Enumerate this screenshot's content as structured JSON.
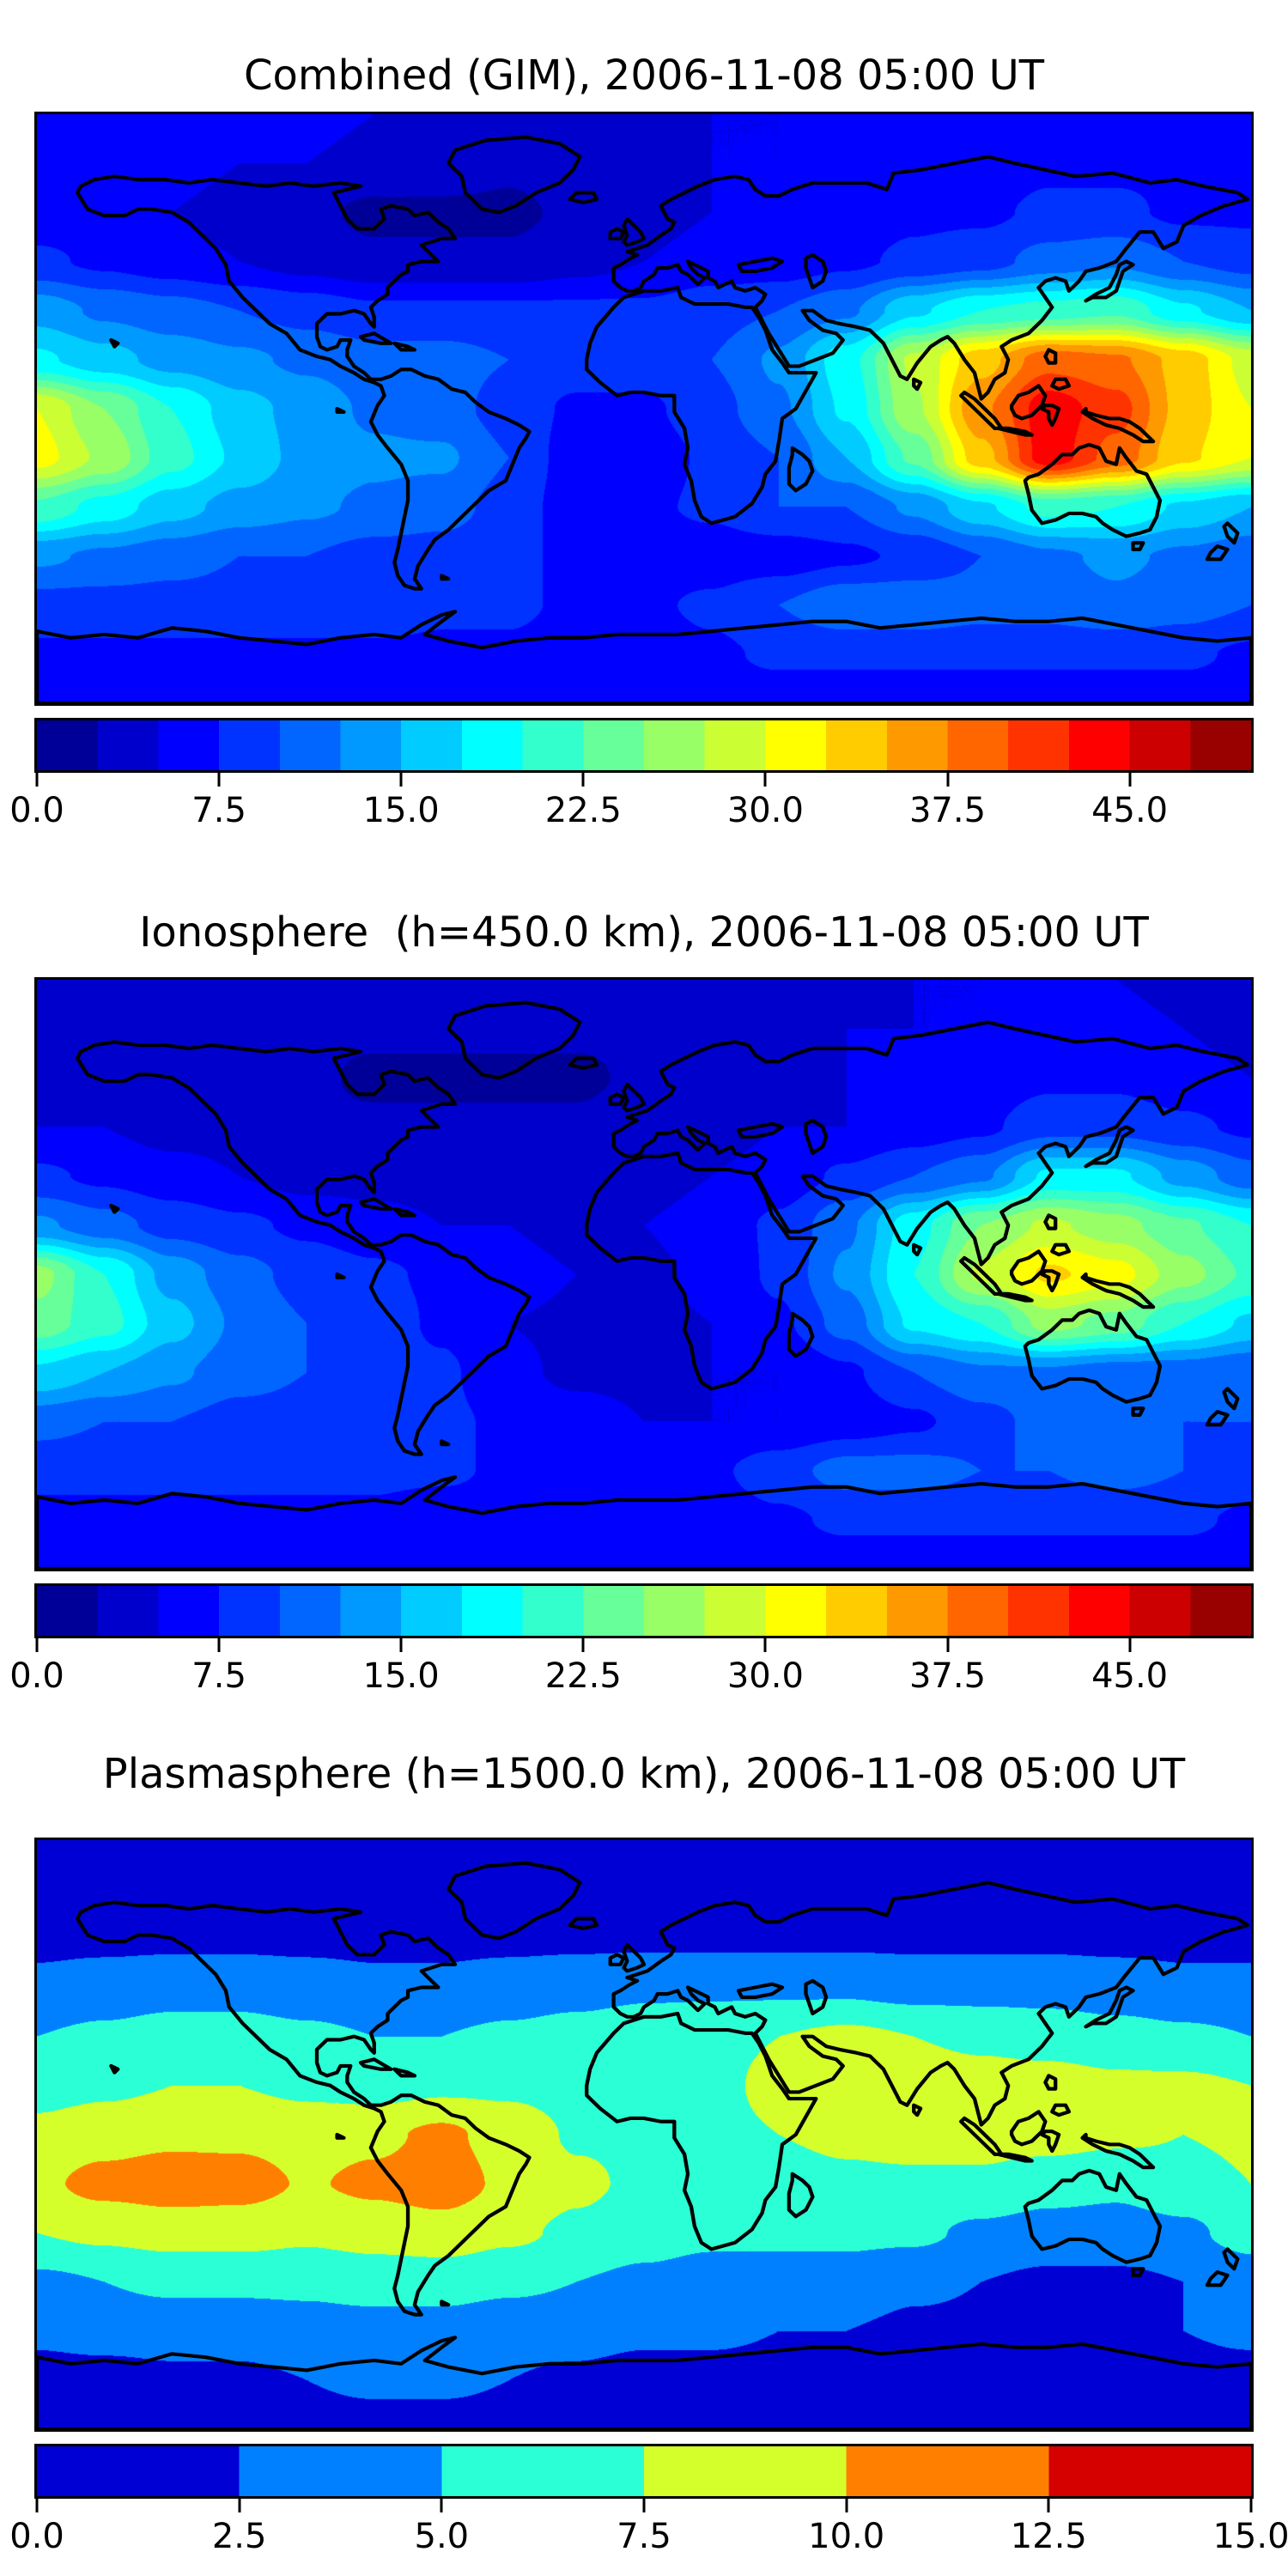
{
  "figure": {
    "background": "#ffffff",
    "text_color": "#000000",
    "map_outline_color": "#000000"
  },
  "panels": [
    {
      "title": "Combined (GIM), 2006-11-08 05:00 UT",
      "colorbar": {
        "vmin": 0,
        "vmax": 50,
        "ticks": [
          "0.0",
          "7.5",
          "15.0",
          "22.5",
          "30.0",
          "37.5",
          "45.0"
        ],
        "tick_values": [
          0,
          7.5,
          15,
          22.5,
          30,
          37.5,
          45
        ],
        "palette": [
          "#000099",
          "#0000cc",
          "#0000ff",
          "#0033ff",
          "#0066ff",
          "#0099ff",
          "#00ccff",
          "#00ffff",
          "#33ffcc",
          "#66ff99",
          "#99ff66",
          "#ccff33",
          "#ffff00",
          "#ffcc00",
          "#ff9900",
          "#ff6600",
          "#ff3300",
          "#ff0000",
          "#cc0000",
          "#990000"
        ]
      }
    },
    {
      "title": "Ionosphere  (h=450.0 km), 2006-11-08 05:00 UT",
      "colorbar": {
        "vmin": 0,
        "vmax": 50,
        "ticks": [
          "0.0",
          "7.5",
          "15.0",
          "22.5",
          "30.0",
          "37.5",
          "45.0"
        ],
        "tick_values": [
          0,
          7.5,
          15,
          22.5,
          30,
          37.5,
          45
        ],
        "palette": [
          "#000099",
          "#0000cc",
          "#0000ff",
          "#0033ff",
          "#0066ff",
          "#0099ff",
          "#00ccff",
          "#00ffff",
          "#33ffcc",
          "#66ff99",
          "#99ff66",
          "#ccff33",
          "#ffff00",
          "#ffcc00",
          "#ff9900",
          "#ff6600",
          "#ff3300",
          "#ff0000",
          "#cc0000",
          "#990000"
        ]
      }
    },
    {
      "title": "Plasmasphere (h=1500.0 km), 2006-11-08 05:00 UT",
      "colorbar": {
        "vmin": 0,
        "vmax": 15,
        "ticks": [
          "0.0",
          "2.5",
          "5.0",
          "7.5",
          "10.0",
          "12.5",
          "15.0"
        ],
        "tick_values": [
          0,
          2.5,
          5,
          7.5,
          10,
          12.5,
          15
        ],
        "palette": [
          "#0000d5",
          "#0080ff",
          "#2bffd5",
          "#d5ff2b",
          "#ff8000",
          "#d50000"
        ]
      }
    }
  ],
  "chart_data": [
    {
      "type": "heatmap",
      "title": "Combined (GIM), 2006-11-08 05:00 UT",
      "xlabel": "",
      "ylabel": "",
      "x_lon": [
        -180,
        -160,
        -140,
        -120,
        -100,
        -80,
        -60,
        -40,
        -20,
        0,
        20,
        40,
        60,
        80,
        100,
        120,
        140,
        160,
        180
      ],
      "y_lat": [
        90,
        75,
        60,
        45,
        30,
        15,
        0,
        -15,
        -30,
        -45,
        -60,
        -75,
        -90
      ],
      "levels": {
        "vmin": 0,
        "vmax": 50,
        "step": 2.5,
        "n_bins": 20
      },
      "legend_position": "bottom",
      "grid": false,
      "values": [
        [
          6,
          6,
          6,
          6,
          6,
          5,
          5,
          5,
          5,
          5,
          5,
          5,
          6,
          6,
          6,
          6,
          6,
          6,
          6
        ],
        [
          6,
          6,
          6,
          5,
          5,
          4,
          4,
          3,
          4,
          4,
          5,
          5,
          6,
          6,
          6,
          7,
          7,
          7,
          6
        ],
        [
          6,
          6,
          5,
          4,
          3,
          2,
          2,
          2,
          3,
          4,
          5,
          6,
          6,
          7,
          7,
          8,
          8,
          7,
          7
        ],
        [
          8,
          7,
          6,
          5,
          4,
          3,
          3,
          3,
          4,
          5,
          6,
          6,
          7,
          8,
          9,
          11,
          12,
          10,
          9
        ],
        [
          14,
          12,
          11,
          10,
          9,
          8,
          8,
          8,
          8,
          8,
          9,
          10,
          12,
          17,
          20,
          21,
          22,
          18,
          15
        ],
        [
          18,
          16,
          14,
          13,
          12,
          11,
          11,
          10,
          9,
          9,
          10,
          13,
          19,
          28,
          34,
          39,
          38,
          34,
          29
        ],
        [
          30,
          25,
          20,
          16,
          14,
          12,
          11,
          9,
          7,
          7,
          9,
          12,
          18,
          27,
          37,
          44,
          41,
          34,
          30
        ],
        [
          31,
          27,
          21,
          17,
          14,
          13,
          13,
          10,
          6,
          6,
          8,
          10,
          15,
          23,
          34,
          44,
          39,
          33,
          30
        ],
        [
          22,
          19,
          16,
          14,
          13,
          12,
          11,
          9,
          6,
          7,
          8,
          10,
          10,
          13,
          17,
          21,
          20,
          17,
          15
        ],
        [
          13,
          12,
          11,
          10,
          10,
          9,
          9,
          8,
          7,
          6,
          6,
          6,
          7,
          8,
          10,
          12,
          13,
          12,
          11
        ],
        [
          9,
          9,
          9,
          9,
          9,
          9,
          8,
          8,
          7,
          7,
          8,
          10,
          12,
          12,
          11,
          11,
          12,
          11,
          10
        ],
        [
          7,
          7,
          7,
          7,
          7,
          7,
          7,
          7,
          6,
          6,
          7,
          8,
          8,
          8,
          8,
          8,
          8,
          8,
          7
        ],
        [
          6,
          6,
          6,
          6,
          6,
          6,
          6,
          6,
          6,
          6,
          6,
          6,
          6,
          6,
          6,
          6,
          6,
          6,
          6
        ]
      ]
    },
    {
      "type": "heatmap",
      "title": "Ionosphere  (h=450.0 km), 2006-11-08 05:00 UT",
      "xlabel": "",
      "ylabel": "",
      "x_lon": [
        -180,
        -160,
        -140,
        -120,
        -100,
        -80,
        -60,
        -40,
        -20,
        0,
        20,
        40,
        60,
        80,
        100,
        120,
        140,
        160,
        180
      ],
      "y_lat": [
        90,
        75,
        60,
        45,
        30,
        15,
        0,
        -15,
        -30,
        -45,
        -60,
        -75,
        -90
      ],
      "levels": {
        "vmin": 0,
        "vmax": 50,
        "step": 2.5,
        "n_bins": 20
      },
      "legend_position": "bottom",
      "grid": false,
      "values": [
        [
          4,
          4,
          4,
          4,
          4,
          4,
          4,
          4,
          4,
          4,
          4,
          4,
          4,
          5,
          5,
          5,
          5,
          4,
          4
        ],
        [
          4,
          4,
          4,
          4,
          3,
          3,
          3,
          3,
          3,
          3,
          4,
          4,
          5,
          5,
          5,
          6,
          6,
          5,
          4
        ],
        [
          4,
          4,
          4,
          3,
          3,
          2,
          2,
          2,
          2,
          3,
          4,
          4,
          5,
          6,
          6,
          7,
          7,
          6,
          5
        ],
        [
          5,
          5,
          4,
          4,
          3,
          3,
          3,
          3,
          3,
          4,
          4,
          5,
          5,
          6,
          7,
          9,
          9,
          8,
          7
        ],
        [
          8,
          7,
          6,
          5,
          4,
          4,
          4,
          4,
          4,
          4,
          5,
          6,
          8,
          10,
          12,
          18,
          18,
          14,
          11
        ],
        [
          13,
          11,
          9,
          8,
          7,
          6,
          5,
          5,
          4,
          5,
          6,
          8,
          12,
          19,
          25,
          28,
          26,
          23,
          20
        ],
        [
          26,
          20,
          14,
          11,
          9,
          8,
          7,
          6,
          5,
          4.5,
          5.5,
          8,
          13,
          20,
          28,
          33,
          31,
          26,
          22
        ],
        [
          24,
          21,
          16,
          12,
          10,
          9,
          7,
          5,
          4.5,
          4.5,
          5,
          7,
          11,
          18,
          20,
          26,
          24,
          20,
          17
        ],
        [
          17,
          15,
          13,
          11,
          10,
          9,
          8,
          5.5,
          4.5,
          4.5,
          5,
          5,
          7,
          10,
          12,
          12,
          11,
          11,
          10
        ],
        [
          11,
          10,
          10,
          9,
          9,
          8,
          8,
          7,
          6,
          5,
          5,
          5,
          6,
          7,
          9,
          11,
          11,
          10,
          10
        ],
        [
          8,
          8,
          8,
          8,
          8,
          8,
          8,
          7,
          7,
          6,
          7,
          9,
          11,
          11,
          10,
          10,
          11,
          10,
          9
        ],
        [
          7,
          7,
          7,
          7,
          7,
          7,
          6,
          6,
          6,
          6,
          6,
          7,
          8,
          8,
          8,
          8,
          8,
          8,
          7
        ],
        [
          6,
          6,
          6,
          6,
          6,
          6,
          6,
          6,
          6,
          6,
          6,
          6,
          6,
          6,
          6,
          6,
          6,
          6,
          6
        ]
      ]
    },
    {
      "type": "heatmap",
      "title": "Plasmasphere (h=1500.0 km), 2006-11-08 05:00 UT",
      "xlabel": "",
      "ylabel": "",
      "x_lon": [
        -180,
        -160,
        -140,
        -120,
        -100,
        -80,
        -60,
        -40,
        -20,
        0,
        20,
        40,
        60,
        80,
        100,
        120,
        140,
        160,
        180
      ],
      "y_lat": [
        90,
        75,
        60,
        45,
        30,
        15,
        0,
        -15,
        -30,
        -45,
        -60,
        -75,
        -90
      ],
      "levels": {
        "vmin": 0,
        "vmax": 15,
        "step": 2.5,
        "n_bins": 6
      },
      "legend_position": "bottom",
      "grid": false,
      "values": [
        [
          1.5,
          1.5,
          1.5,
          1.5,
          1.5,
          1.5,
          1.5,
          1.5,
          1.5,
          1.5,
          1.5,
          1.5,
          1.5,
          1.5,
          1.5,
          1.5,
          1.5,
          1.5,
          1.5
        ],
        [
          1.5,
          1.5,
          1.5,
          1.5,
          1.5,
          1.5,
          1.5,
          1.5,
          1.5,
          1.5,
          1.5,
          1.5,
          1.5,
          1.5,
          1.5,
          1.5,
          1.5,
          1.5,
          1.5
        ],
        [
          2,
          2,
          2,
          2,
          2,
          2,
          2,
          2,
          2,
          2,
          2,
          2,
          2,
          2,
          2,
          2,
          2,
          2,
          2
        ],
        [
          3,
          3.5,
          4,
          4,
          3.5,
          3,
          3,
          3.5,
          4,
          4.5,
          4.5,
          4.5,
          4.5,
          4,
          4,
          4,
          3.5,
          3,
          3
        ],
        [
          5,
          5.5,
          6,
          6,
          5.5,
          5,
          5,
          5.5,
          6,
          6.5,
          7,
          7.5,
          8,
          7.5,
          7,
          6.5,
          6,
          5.5,
          5
        ],
        [
          6.5,
          7,
          7.5,
          7.5,
          7,
          6.5,
          7,
          7,
          6.5,
          6.5,
          7,
          8,
          8.5,
          9,
          8.5,
          8.5,
          8,
          8,
          7.5
        ],
        [
          8.2,
          9,
          9.5,
          9.5,
          9,
          9.5,
          10.5,
          9,
          7.2,
          7,
          7,
          7.5,
          8,
          8.5,
          8.5,
          8.5,
          8,
          7.5,
          8
        ],
        [
          9.5,
          10.8,
          11.3,
          11,
          9.8,
          10.5,
          11.2,
          9.5,
          8,
          7,
          6.5,
          6.5,
          7,
          7,
          7,
          6,
          5.5,
          6.5,
          7.5
        ],
        [
          7.5,
          8,
          8.5,
          8.5,
          8,
          8.5,
          9,
          8,
          7,
          6,
          5.5,
          5.5,
          5.5,
          5.5,
          4.5,
          4,
          4,
          4.5,
          6
        ],
        [
          4.5,
          5,
          5.5,
          5.5,
          5.5,
          6,
          6,
          5.5,
          5,
          4.5,
          4,
          4,
          4,
          3,
          2.5,
          2,
          2,
          2.5,
          3.5
        ],
        [
          3,
          3.5,
          3.5,
          3.5,
          4,
          4,
          4,
          3.5,
          3.5,
          3,
          3,
          2.5,
          2.5,
          2,
          2,
          2,
          2,
          2.5,
          3
        ],
        [
          1.5,
          1.5,
          2,
          2,
          2.5,
          3,
          3,
          2.5,
          2,
          1.5,
          1.5,
          1.5,
          1.5,
          1.5,
          1.5,
          1.5,
          1.5,
          1.5,
          1.5
        ],
        [
          1.5,
          1.5,
          1.5,
          1.5,
          1.5,
          1.5,
          1.5,
          1.5,
          1.5,
          1.5,
          1.5,
          1.5,
          1.5,
          1.5,
          1.5,
          1.5,
          1.5,
          1.5,
          1.5
        ]
      ]
    }
  ]
}
